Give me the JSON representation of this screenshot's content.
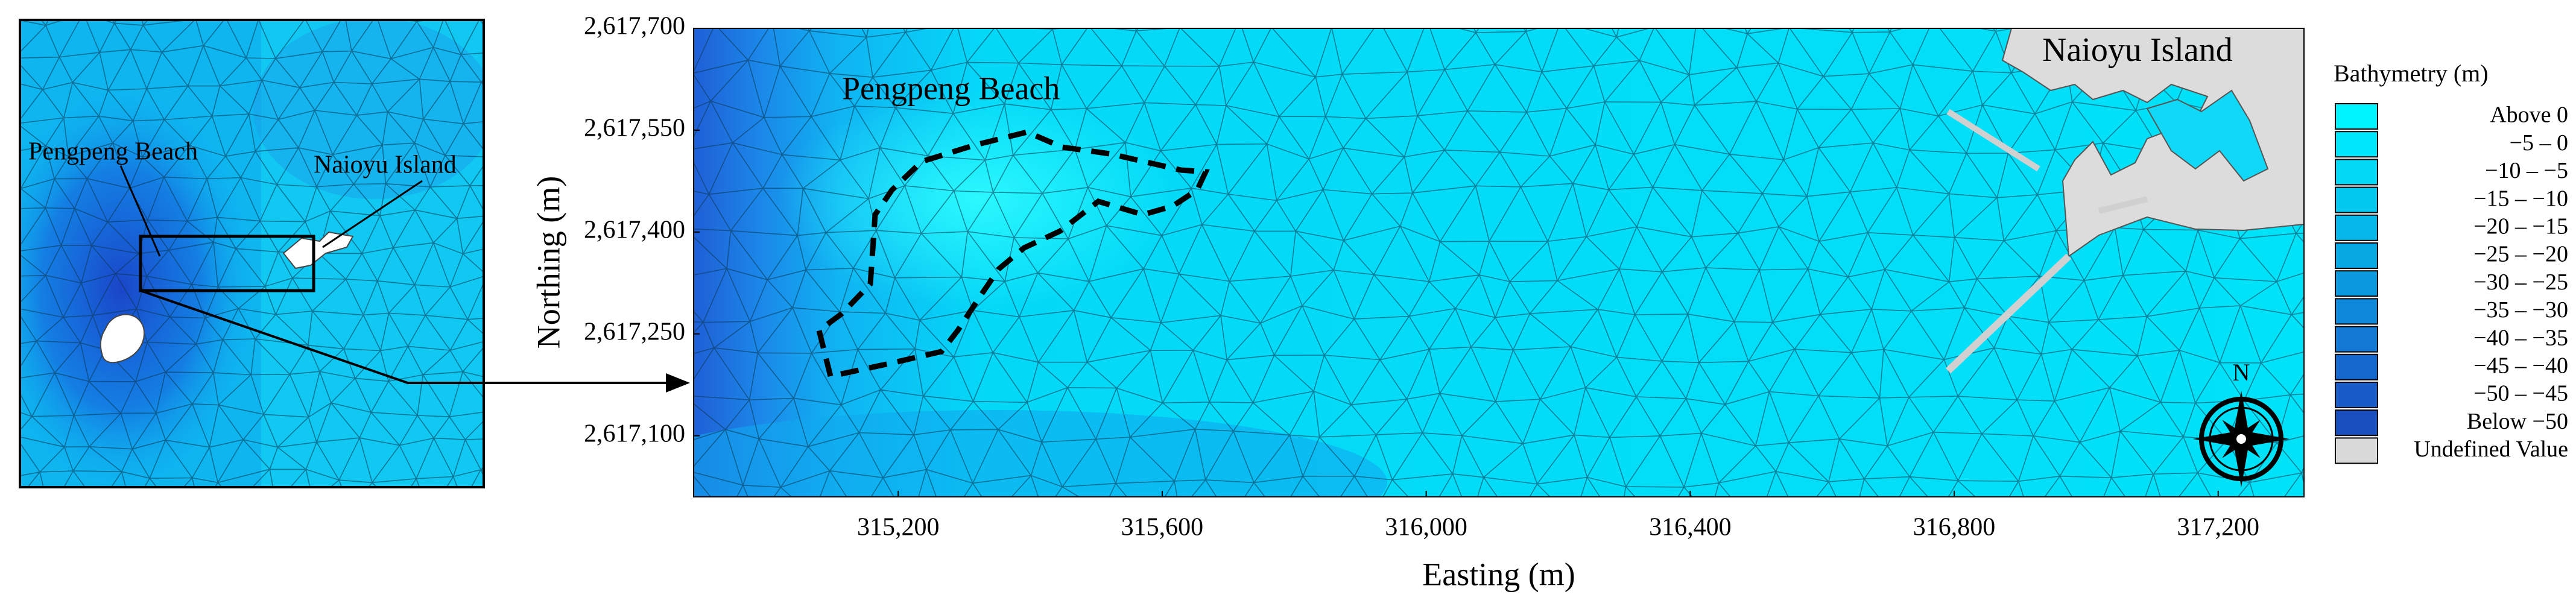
{
  "inset": {
    "beach_label": "Pengpeng Beach",
    "island_label": "Naioyu Island"
  },
  "main_map": {
    "beach_label": "Pengpeng Beach",
    "island_label": "Naioyu Island",
    "compass": "N",
    "x_axis": {
      "label": "Easting (m)",
      "lim": [
        314890,
        317330
      ],
      "ticks": [
        {
          "value": 315200,
          "label": "315,200"
        },
        {
          "value": 315600,
          "label": "315,600"
        },
        {
          "value": 316000,
          "label": "316,000"
        },
        {
          "value": 316400,
          "label": "316,400"
        },
        {
          "value": 316800,
          "label": "316,800"
        },
        {
          "value": 317200,
          "label": "317,200"
        }
      ]
    },
    "y_axis": {
      "label": "Northing (m)",
      "lim": [
        2617010,
        2617700
      ],
      "ticks": [
        {
          "value": 2617700,
          "label": "2,617,700"
        },
        {
          "value": 2617550,
          "label": "2,617,550"
        },
        {
          "value": 2617400,
          "label": "2,617,400"
        },
        {
          "value": 2617250,
          "label": "2,617,250"
        },
        {
          "value": 2617100,
          "label": "2,617,100"
        }
      ]
    }
  },
  "legend": {
    "title": "Bathymetry (m)",
    "entries": [
      {
        "label": "Above 0",
        "color": "#00f4ff"
      },
      {
        "label": "−5 – 0",
        "color": "#00e6fa"
      },
      {
        "label": "−10 – −5",
        "color": "#00d8f5"
      },
      {
        "label": "−15 – −10",
        "color": "#02c8ef"
      },
      {
        "label": "−20 – −15",
        "color": "#05b8e9"
      },
      {
        "label": "−25 – −20",
        "color": "#08a8e3"
      },
      {
        "label": "−30 – −25",
        "color": "#0b98dd"
      },
      {
        "label": "−35 – −30",
        "color": "#0e88d8"
      },
      {
        "label": "−40 – −35",
        "color": "#1178d3"
      },
      {
        "label": "−45 – −40",
        "color": "#1468ce"
      },
      {
        "label": "−50 – −45",
        "color": "#175ac8"
      },
      {
        "label": "Below −50",
        "color": "#1a4fc0"
      },
      {
        "label": "Undefined Value",
        "color": "#d9d9d9"
      }
    ]
  }
}
